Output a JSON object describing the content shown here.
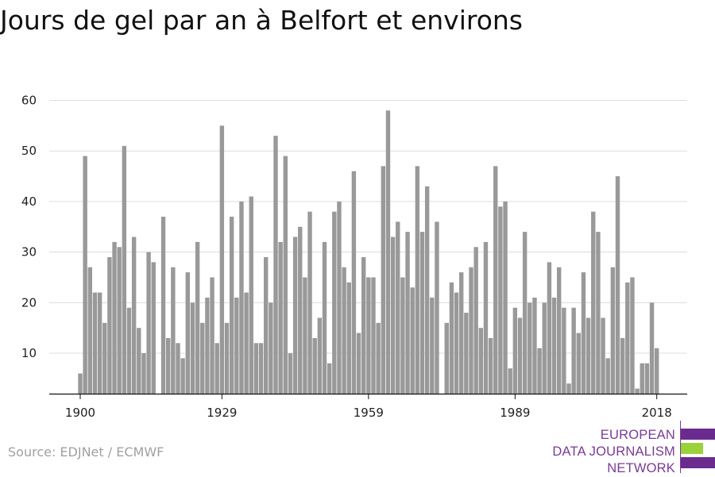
{
  "title": "Jours de gel par an à Belfort et environs",
  "source": "Source: EDJNet / ECMWF",
  "logo": {
    "lines": [
      "EUROPEAN",
      "DATA JOURNALISM",
      "NETWORK"
    ],
    "colors": {
      "purple": "#6a2a8e",
      "green": "#9bd13a"
    }
  },
  "chart_data": {
    "type": "bar",
    "title": "Jours de gel par an à Belfort et environs",
    "xlabel": "",
    "ylabel": "",
    "x_tick_labels": [
      "1900",
      "1929",
      "1959",
      "1989",
      "2018"
    ],
    "y_ticks": [
      10,
      20,
      30,
      40,
      50,
      60
    ],
    "ylim": [
      2,
      62
    ],
    "grid": true,
    "bar_color": "#999999",
    "x": [
      1900,
      1901,
      1902,
      1903,
      1904,
      1905,
      1906,
      1907,
      1908,
      1909,
      1910,
      1911,
      1912,
      1913,
      1914,
      1915,
      1916,
      1917,
      1918,
      1919,
      1920,
      1921,
      1922,
      1923,
      1924,
      1925,
      1926,
      1927,
      1928,
      1929,
      1930,
      1931,
      1932,
      1933,
      1934,
      1935,
      1936,
      1937,
      1938,
      1939,
      1940,
      1941,
      1942,
      1943,
      1944,
      1945,
      1946,
      1947,
      1948,
      1949,
      1950,
      1951,
      1952,
      1953,
      1954,
      1955,
      1956,
      1957,
      1958,
      1959,
      1960,
      1961,
      1962,
      1963,
      1964,
      1965,
      1966,
      1967,
      1968,
      1969,
      1970,
      1971,
      1972,
      1973,
      1974,
      1975,
      1976,
      1977,
      1978,
      1979,
      1980,
      1981,
      1982,
      1983,
      1984,
      1985,
      1986,
      1987,
      1988,
      1989,
      1990,
      1991,
      1992,
      1993,
      1994,
      1995,
      1996,
      1997,
      1998,
      1999,
      2000,
      2001,
      2002,
      2003,
      2004,
      2005,
      2006,
      2007,
      2008,
      2009,
      2010,
      2011,
      2012,
      2013,
      2014,
      2015,
      2016,
      2017,
      2018
    ],
    "values": [
      6,
      49,
      27,
      22,
      22,
      16,
      29,
      32,
      31,
      51,
      19,
      33,
      15,
      10,
      30,
      28,
      2,
      37,
      13,
      27,
      12,
      9,
      26,
      20,
      32,
      16,
      21,
      25,
      12,
      55,
      16,
      37,
      21,
      40,
      22,
      41,
      12,
      12,
      29,
      20,
      53,
      32,
      49,
      10,
      33,
      35,
      25,
      38,
      13,
      17,
      32,
      8,
      38,
      40,
      27,
      24,
      46,
      14,
      29,
      25,
      25,
      16,
      47,
      58,
      33,
      36,
      25,
      34,
      23,
      47,
      34,
      43,
      21,
      36,
      2,
      16,
      24,
      22,
      26,
      18,
      27,
      31,
      15,
      32,
      13,
      47,
      39,
      40,
      7,
      19,
      17,
      34,
      20,
      21,
      11,
      20,
      28,
      21,
      27,
      19,
      4,
      19,
      14,
      26,
      17,
      38,
      34,
      17,
      9,
      27,
      45,
      13,
      24,
      25,
      3,
      8,
      8,
      20,
      11
    ]
  }
}
